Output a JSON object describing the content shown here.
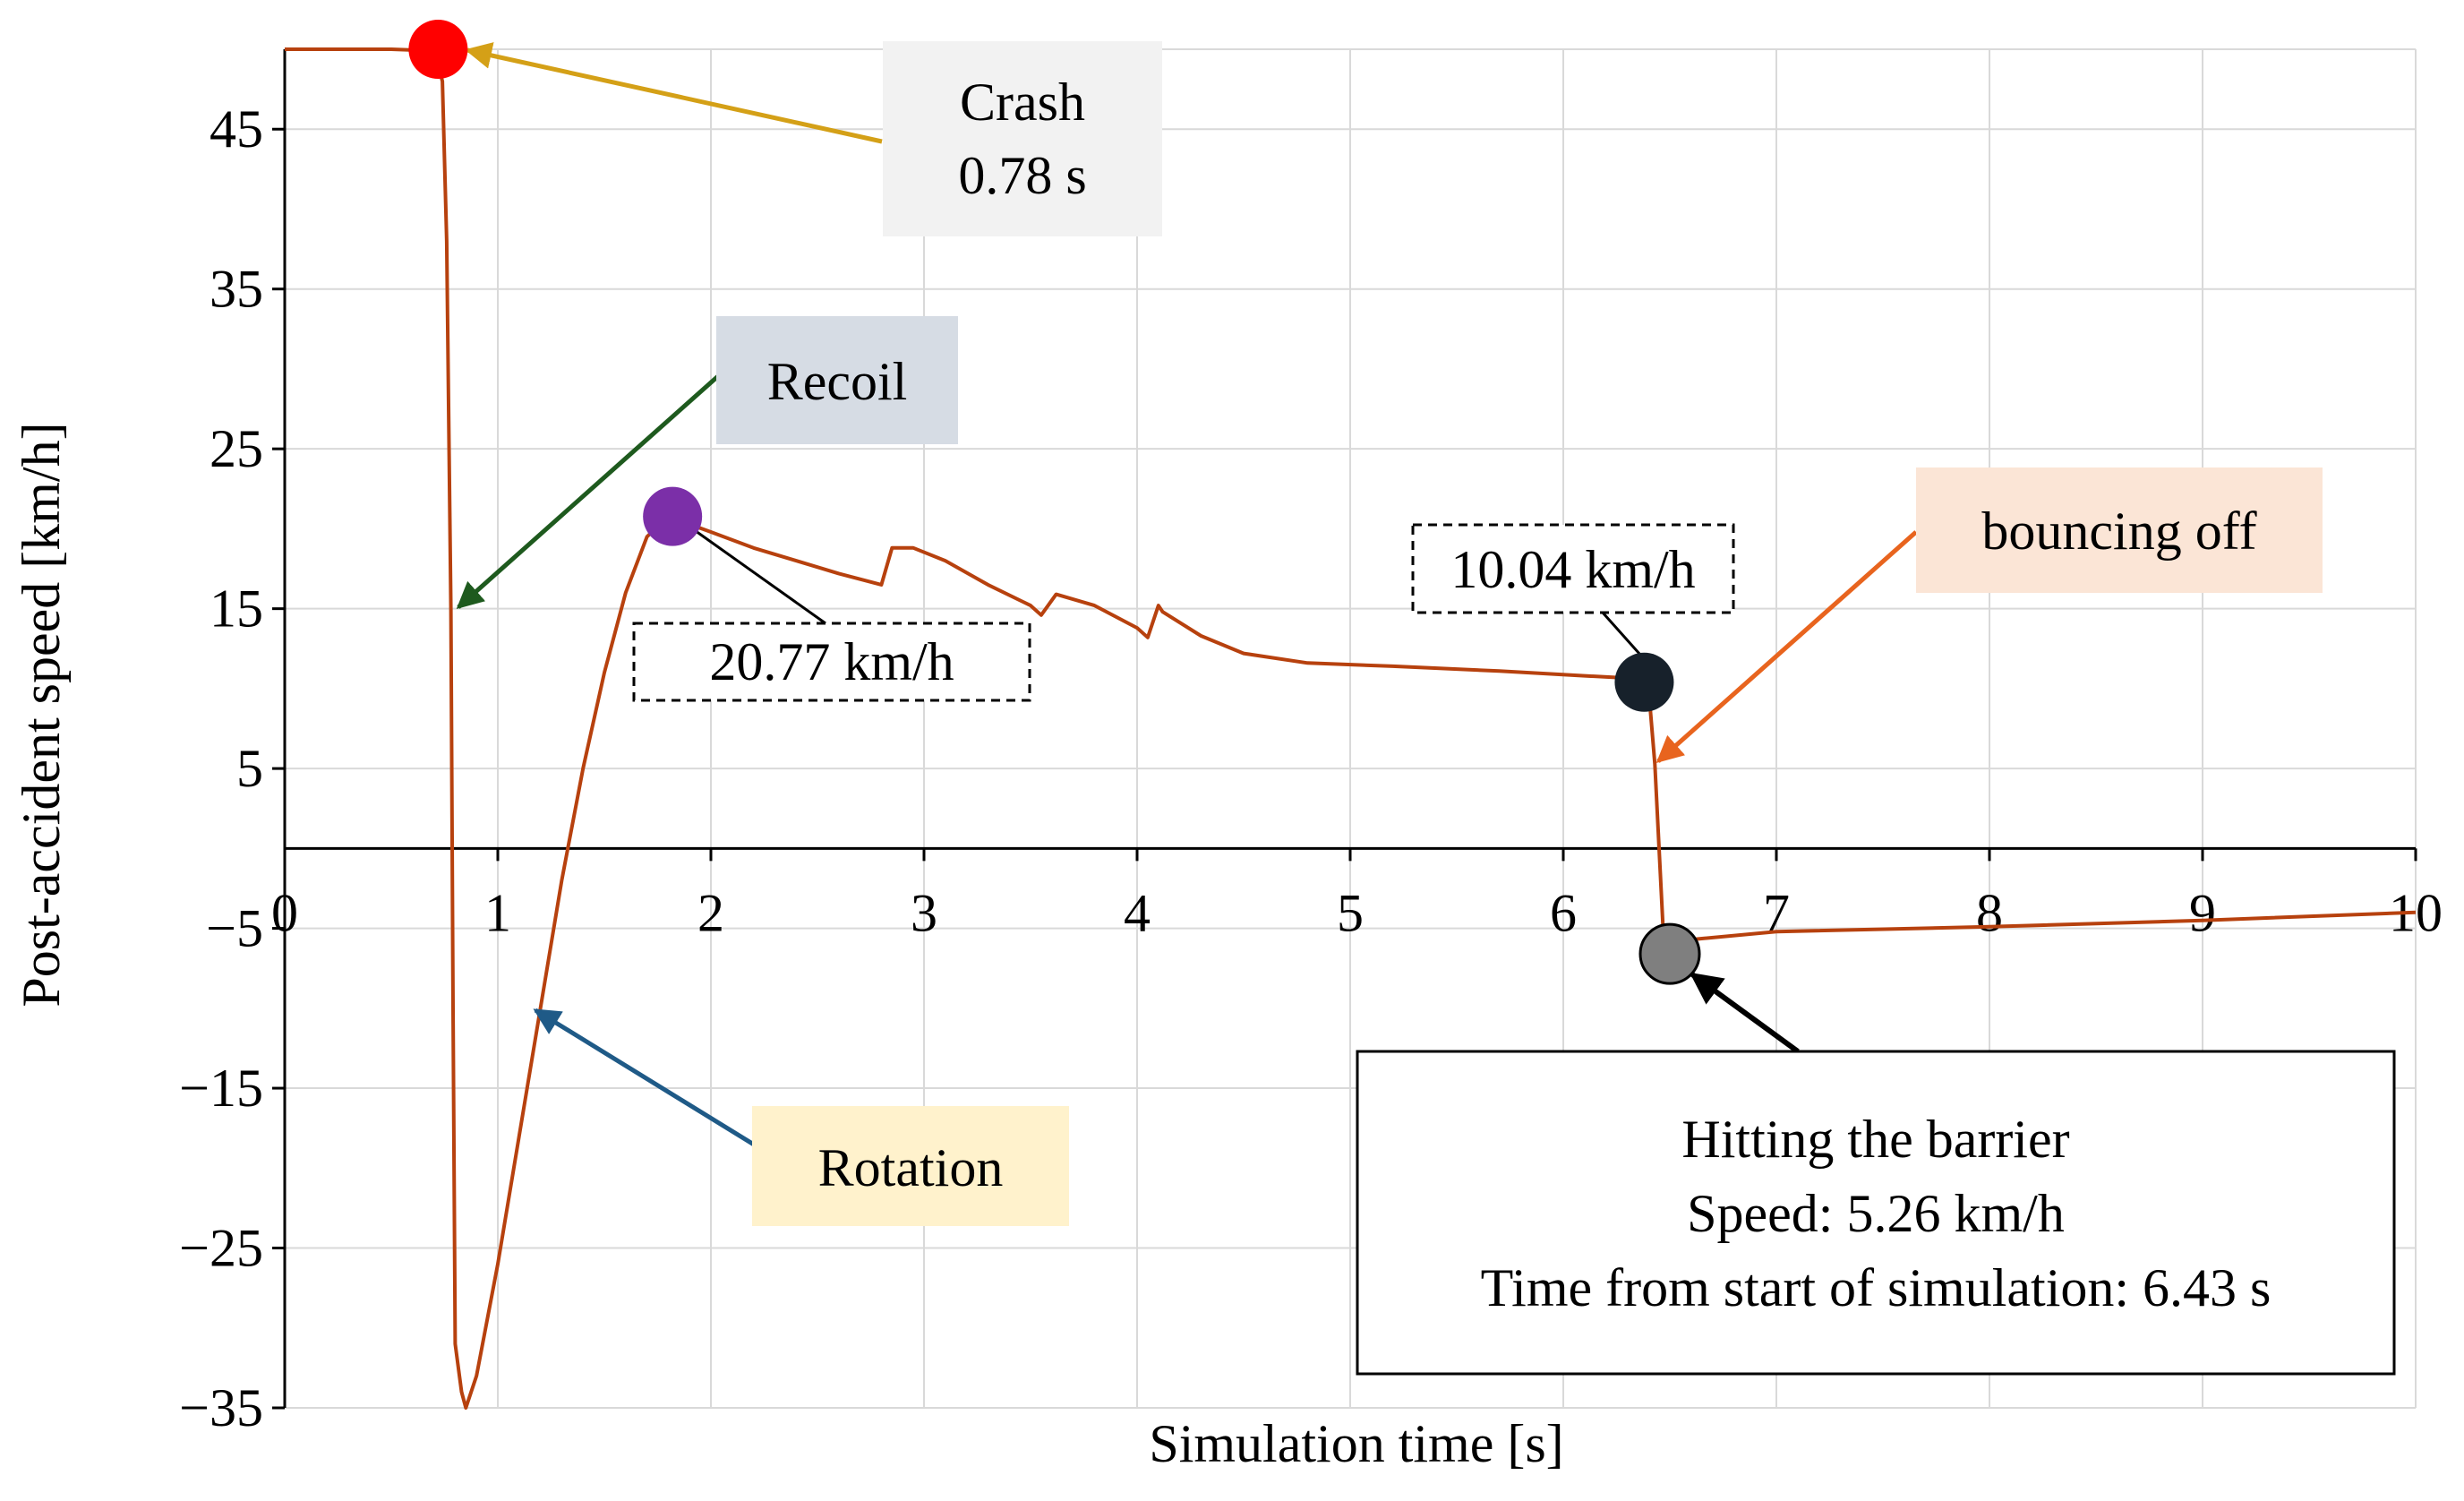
{
  "chart_data": {
    "type": "line",
    "xlabel": "Simulation time [s]",
    "ylabel": "Post-accident speed [km/h]",
    "xlim": [
      0,
      10
    ],
    "ylim": [
      -35,
      50
    ],
    "x_ticks": [
      0,
      1,
      2,
      3,
      4,
      5,
      6,
      7,
      8,
      9,
      10
    ],
    "x_tick_labels": [
      "0",
      "1",
      "2",
      "3",
      "4",
      "5",
      "6",
      "7",
      "8",
      "9",
      "10"
    ],
    "y_ticks": [
      45,
      35,
      25,
      15,
      5,
      -5,
      -15,
      -25,
      -35
    ],
    "y_tick_labels": [
      "45",
      "35",
      "25",
      "15",
      "5",
      "−5",
      "−15",
      "−25",
      "−35"
    ],
    "grid": true,
    "series": [
      {
        "name": "Post-accident speed",
        "color": "#b7410e",
        "points": [
          [
            0,
            50
          ],
          [
            0.5,
            50
          ],
          [
            0.7,
            49.9
          ],
          [
            0.74,
            48
          ],
          [
            0.76,
            38
          ],
          [
            0.78,
            15
          ],
          [
            0.79,
            -10
          ],
          [
            0.8,
            -31
          ],
          [
            0.83,
            -34
          ],
          [
            0.85,
            -35
          ],
          [
            0.9,
            -33
          ],
          [
            1.0,
            -26
          ],
          [
            1.1,
            -18
          ],
          [
            1.2,
            -10
          ],
          [
            1.3,
            -2
          ],
          [
            1.4,
            5
          ],
          [
            1.5,
            11
          ],
          [
            1.6,
            16
          ],
          [
            1.7,
            19.5
          ],
          [
            1.8,
            20.77
          ],
          [
            2.0,
            19.8
          ],
          [
            2.2,
            18.8
          ],
          [
            2.4,
            18
          ],
          [
            2.6,
            17.2
          ],
          [
            2.8,
            16.5
          ],
          [
            2.85,
            18.8
          ],
          [
            2.95,
            18.8
          ],
          [
            3.1,
            18
          ],
          [
            3.3,
            16.5
          ],
          [
            3.5,
            15.2
          ],
          [
            3.55,
            14.6
          ],
          [
            3.62,
            15.9
          ],
          [
            3.8,
            15.2
          ],
          [
            4.0,
            13.8
          ],
          [
            4.05,
            13.2
          ],
          [
            4.1,
            15.2
          ],
          [
            4.12,
            14.8
          ],
          [
            4.3,
            13.3
          ],
          [
            4.5,
            12.2
          ],
          [
            4.8,
            11.6
          ],
          [
            5.2,
            11.4
          ],
          [
            5.7,
            11.1
          ],
          [
            6.1,
            10.8
          ],
          [
            6.39,
            10.6
          ],
          [
            6.4,
            10.04
          ],
          [
            6.43,
            5.26
          ],
          [
            6.47,
            -5.5
          ],
          [
            6.52,
            -5.8
          ],
          [
            6.6,
            -5.7
          ],
          [
            7.0,
            -5.2
          ],
          [
            8.0,
            -4.9
          ],
          [
            9.0,
            -4.5
          ],
          [
            10.0,
            -4.0
          ]
        ]
      }
    ],
    "markers": [
      {
        "name": "crash-marker",
        "x": 0.72,
        "y": 50,
        "color": "#ff0000"
      },
      {
        "name": "peak-rotation-marker",
        "x": 1.82,
        "y": 20.77,
        "color": "#7b2fa8"
      },
      {
        "name": "pre-barrier-marker",
        "x": 6.38,
        "y": 10.4,
        "color": "#17212b"
      },
      {
        "name": "barrier-hit-marker",
        "x": 6.5,
        "y": -6.6,
        "color": "#7f7f7f"
      }
    ],
    "annotations": {
      "crash": {
        "line1": "Crash",
        "line2": "0.78 s",
        "arrow_color": "#d4a017",
        "box_fill": "#f2f2f2"
      },
      "recoil": {
        "text": "Recoil",
        "arrow_color": "#1e5a1e",
        "box_fill": "#d6dce4"
      },
      "rotation": {
        "text": "Rotation",
        "arrow_color": "#1f5a87",
        "box_fill": "#fff2cc"
      },
      "peak_speed": {
        "text": "20.77 km/h"
      },
      "pre_barrier_speed": {
        "text": "10.04 km/h"
      },
      "bouncing_off": {
        "text": "bouncing off",
        "arrow_color": "#e8641e",
        "box_fill": "#fbe5d6"
      },
      "barrier": {
        "line1": "Hitting the barrier",
        "line2": "Speed: 5.26 km/h",
        "line3": "Time from start of simulation: 6.43 s"
      }
    }
  }
}
